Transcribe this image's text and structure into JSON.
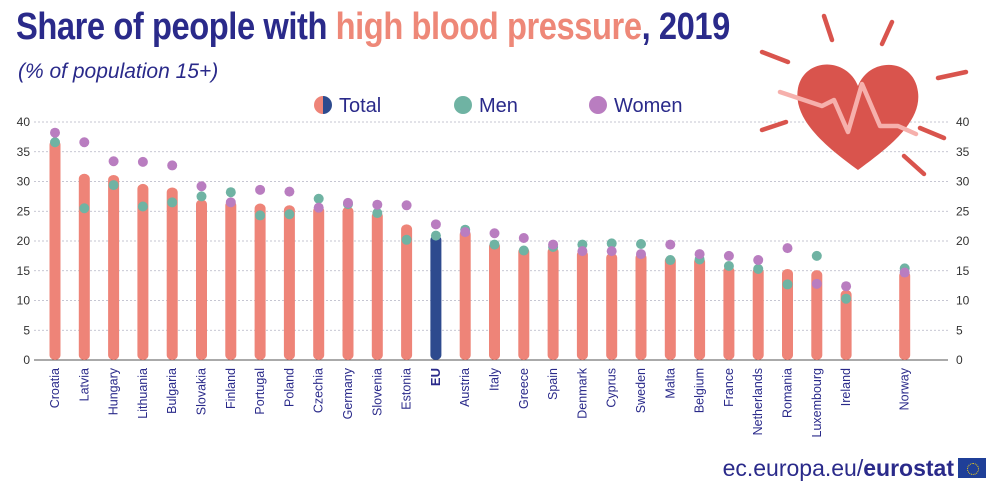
{
  "header": {
    "title_pre": "Share of people with ",
    "title_accent": "high blood pressure",
    "title_post": ", 2019",
    "subtitle": "(% of population 15+)"
  },
  "footer": {
    "domain": "ec.europa.eu/",
    "brand": "eurostat"
  },
  "colors": {
    "total": "#ee8478",
    "total_eu": "#2d4a8e",
    "men": "#6fb3a3",
    "women": "#b97dc0",
    "title_text": "#2a2a8a",
    "title_accent": "#ee8878",
    "heart": "#d9544d",
    "heart_rays": "#d9544d",
    "pulse": "#f6b0ac"
  },
  "icons": [
    "heart-icon",
    "eu-flag-icon"
  ],
  "chart_data": {
    "type": "bar",
    "ylim": [
      0,
      40
    ],
    "yticks": [
      0,
      5,
      10,
      15,
      20,
      25,
      30,
      35,
      40
    ],
    "grid": true,
    "legend": [
      "Total",
      "Men",
      "Women"
    ],
    "legend_position": "top-center",
    "categories": [
      "Croatia",
      "Latvia",
      "Hungary",
      "Lithuania",
      "Bulgaria",
      "Slovakia",
      "Finland",
      "Portugal",
      "Poland",
      "Czechia",
      "Germany",
      "Slovenia",
      "Estonia",
      "EU",
      "Austria",
      "Italy",
      "Greece",
      "Spain",
      "Denmark",
      "Cyprus",
      "Sweden",
      "Malta",
      "Belgium",
      "France",
      "Netherlands",
      "Romania",
      "Luxembourg",
      "Ireland",
      "",
      "Norway"
    ],
    "highlight": "EU",
    "series": [
      {
        "name": "Total",
        "values": [
          37.0,
          31.3,
          31.1,
          29.6,
          29.0,
          27.0,
          26.8,
          26.3,
          26.0,
          25.9,
          25.8,
          25.0,
          22.8,
          21.0,
          21.9,
          19.9,
          19.0,
          19.0,
          18.5,
          18.0,
          18.0,
          17.5,
          17.3,
          15.8,
          15.6,
          15.3,
          15.1,
          11.8,
          null,
          15.0
        ]
      },
      {
        "name": "Men",
        "values": [
          36.6,
          25.5,
          29.4,
          25.8,
          26.5,
          27.5,
          28.2,
          24.3,
          24.5,
          27.1,
          26.2,
          24.7,
          20.2,
          20.9,
          21.9,
          19.4,
          18.4,
          19.0,
          19.4,
          19.6,
          19.5,
          16.8,
          16.9,
          15.8,
          15.3,
          12.7,
          17.5,
          10.3,
          null,
          15.4
        ]
      },
      {
        "name": "Women",
        "values": [
          38.2,
          36.6,
          33.4,
          33.3,
          32.7,
          29.2,
          26.5,
          28.6,
          28.3,
          25.6,
          26.4,
          26.1,
          26.0,
          22.8,
          21.5,
          21.3,
          20.5,
          19.4,
          18.3,
          18.3,
          17.8,
          19.4,
          17.8,
          17.5,
          16.8,
          18.8,
          12.8,
          12.4,
          null,
          14.7
        ]
      }
    ]
  }
}
